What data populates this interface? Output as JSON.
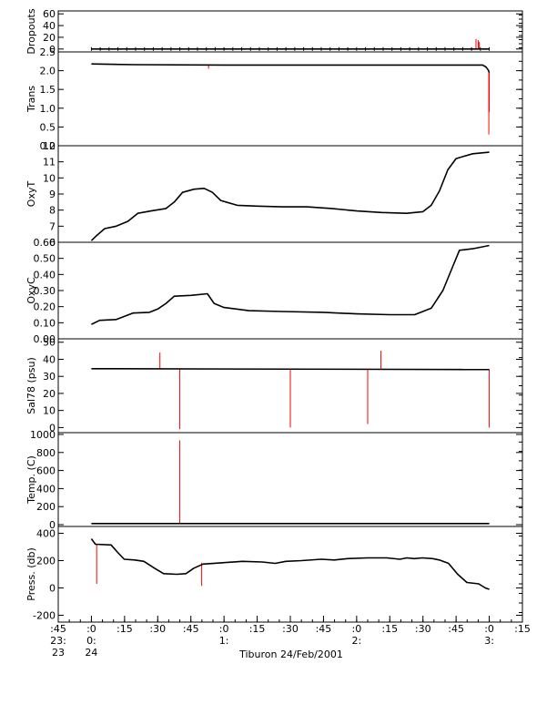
{
  "chart_data": {
    "type": "line",
    "title": "Tiburon 24/Feb/2001",
    "x_axis": {
      "ticks": [
        {
          "t": -15,
          "label": ":45",
          "hour": "23:",
          "day": "23"
        },
        {
          "t": 0,
          "label": ":0",
          "hour": "0:",
          "day": "24"
        },
        {
          "t": 15,
          "label": ":15",
          "hour": "",
          "day": ""
        },
        {
          "t": 30,
          "label": ":30",
          "hour": "",
          "day": ""
        },
        {
          "t": 45,
          "label": ":45",
          "hour": "",
          "day": ""
        },
        {
          "t": 60,
          "label": ":0",
          "hour": "1:",
          "day": ""
        },
        {
          "t": 75,
          "label": ":15",
          "hour": "",
          "day": ""
        },
        {
          "t": 90,
          "label": ":30",
          "hour": "",
          "day": ""
        },
        {
          "t": 105,
          "label": ":45",
          "hour": "",
          "day": ""
        },
        {
          "t": 120,
          "label": ":0",
          "hour": "2:",
          "day": ""
        },
        {
          "t": 135,
          "label": ":15",
          "hour": "",
          "day": ""
        },
        {
          "t": 150,
          "label": ":30",
          "hour": "",
          "day": ""
        },
        {
          "t": 165,
          "label": ":45",
          "hour": "",
          "day": ""
        },
        {
          "t": 180,
          "label": ":0",
          "hour": "3:",
          "day": ""
        },
        {
          "t": 195,
          "label": ":15",
          "hour": "",
          "day": ""
        }
      ]
    },
    "panels": [
      {
        "ylabel": "Dropouts",
        "ylim": [
          -5,
          65
        ],
        "yticks": [
          0,
          20,
          40,
          60
        ],
        "ytick_labels": [
          "0",
          "20",
          "40",
          "60"
        ],
        "series": [
          [
            0,
            0
          ],
          [
            180,
            0
          ]
        ],
        "spikes": [
          [
            174,
            0,
            17
          ],
          [
            175,
            0,
            15
          ],
          [
            175.5,
            0,
            12
          ]
        ]
      },
      {
        "ylabel": "Trans",
        "ylim": [
          0,
          2.5
        ],
        "yticks": [
          0,
          0.5,
          1.0,
          1.5,
          2.0,
          2.5
        ],
        "ytick_labels": [
          "0.0",
          "0.5",
          "1.0",
          "1.5",
          "2.0",
          "2.5"
        ],
        "series": [
          [
            0,
            2.18
          ],
          [
            20,
            2.16
          ],
          [
            60,
            2.15
          ],
          [
            120,
            2.15
          ],
          [
            177,
            2.15
          ],
          [
            178.5,
            2.1
          ],
          [
            179.5,
            2.02
          ],
          [
            180,
            1.95
          ]
        ],
        "spikes": [
          [
            53,
            2.15,
            2.05
          ],
          [
            179.8,
            2.0,
            0.3
          ],
          [
            180,
            1.95,
            0.9
          ]
        ]
      },
      {
        "ylabel": "OxyT",
        "ylim": [
          6,
          12
        ],
        "yticks": [
          6,
          7,
          8,
          9,
          10,
          11,
          12
        ],
        "ytick_labels": [
          "6",
          "7",
          "8",
          "9",
          "10",
          "11",
          "12"
        ],
        "series": [
          [
            0,
            6.1
          ],
          [
            3,
            6.4
          ],
          [
            8,
            6.85
          ],
          [
            15,
            7.0
          ],
          [
            22,
            7.3
          ],
          [
            28,
            7.8
          ],
          [
            36,
            7.95
          ],
          [
            45,
            8.1
          ],
          [
            50,
            8.5
          ],
          [
            55,
            9.1
          ],
          [
            62,
            9.3
          ],
          [
            68,
            9.35
          ],
          [
            73,
            9.1
          ],
          [
            78,
            8.6
          ],
          [
            88,
            8.3
          ],
          [
            100,
            8.25
          ],
          [
            115,
            8.2
          ],
          [
            130,
            8.2
          ],
          [
            145,
            8.1
          ],
          [
            160,
            7.95
          ],
          [
            175,
            7.85
          ],
          [
            190,
            7.8
          ],
          [
            200,
            7.9
          ],
          [
            205,
            8.3
          ],
          [
            210,
            9.2
          ],
          [
            215,
            10.5
          ],
          [
            220,
            11.2
          ],
          [
            230,
            11.5
          ],
          [
            240,
            11.6
          ]
        ],
        "spikes": []
      },
      {
        "ylabel": "OxyC",
        "ylim": [
          0,
          0.6
        ],
        "yticks": [
          0.0,
          0.1,
          0.2,
          0.3,
          0.4,
          0.5,
          0.6
        ],
        "ytick_labels": [
          "0.00",
          "0.10",
          "0.20",
          "0.30",
          "0.40",
          "0.50",
          "0.60"
        ],
        "series": [
          [
            0,
            0.09
          ],
          [
            5,
            0.115
          ],
          [
            15,
            0.12
          ],
          [
            20,
            0.14
          ],
          [
            25,
            0.16
          ],
          [
            35,
            0.165
          ],
          [
            40,
            0.185
          ],
          [
            45,
            0.22
          ],
          [
            50,
            0.265
          ],
          [
            60,
            0.27
          ],
          [
            70,
            0.28
          ],
          [
            74,
            0.22
          ],
          [
            80,
            0.195
          ],
          [
            95,
            0.175
          ],
          [
            115,
            0.17
          ],
          [
            140,
            0.165
          ],
          [
            160,
            0.155
          ],
          [
            180,
            0.15
          ],
          [
            195,
            0.15
          ],
          [
            205,
            0.19
          ],
          [
            212,
            0.3
          ],
          [
            218,
            0.45
          ],
          [
            222,
            0.55
          ],
          [
            230,
            0.56
          ],
          [
            240,
            0.58
          ]
        ],
        "spikes": []
      },
      {
        "ylabel": "Sal78 (psu)",
        "ylim": [
          -3,
          52
        ],
        "yticks": [
          0,
          10,
          20,
          30,
          40,
          50
        ],
        "ytick_labels": [
          "0",
          "10",
          "20",
          "30",
          "40",
          "50"
        ],
        "series": [
          [
            0,
            34.5
          ],
          [
            180,
            34.0
          ]
        ],
        "spikes": [
          [
            31,
            34.5,
            44
          ],
          [
            40,
            34.3,
            -1
          ],
          [
            90,
            34.2,
            0
          ],
          [
            125,
            34.1,
            2
          ],
          [
            131,
            34.1,
            45
          ],
          [
            180,
            34.0,
            0
          ]
        ]
      },
      {
        "ylabel": "Temp. (C)",
        "ylim": [
          -20,
          1020
        ],
        "yticks": [
          0,
          200,
          400,
          600,
          800,
          1000
        ],
        "ytick_labels": [
          "0",
          "200",
          "400",
          "600",
          "800",
          "1000"
        ],
        "series": [
          [
            0,
            12
          ],
          [
            180,
            12
          ]
        ],
        "spikes": [
          [
            40,
            12,
            935
          ]
        ]
      },
      {
        "ylabel": "Press. (db)",
        "ylim": [
          -250,
          450
        ],
        "yticks": [
          -200,
          0,
          200,
          400
        ],
        "ytick_labels": [
          "-200",
          "0",
          "200",
          "400"
        ],
        "series": [
          [
            0,
            360
          ],
          [
            3,
            320
          ],
          [
            15,
            315
          ],
          [
            20,
            260
          ],
          [
            25,
            210
          ],
          [
            33,
            205
          ],
          [
            40,
            195
          ],
          [
            48,
            145
          ],
          [
            55,
            105
          ],
          [
            65,
            100
          ],
          [
            72,
            105
          ],
          [
            78,
            145
          ],
          [
            85,
            175
          ],
          [
            100,
            185
          ],
          [
            115,
            195
          ],
          [
            130,
            190
          ],
          [
            140,
            180
          ],
          [
            148,
            195
          ],
          [
            160,
            200
          ],
          [
            175,
            210
          ],
          [
            185,
            205
          ],
          [
            195,
            215
          ],
          [
            210,
            220
          ],
          [
            225,
            220
          ],
          [
            235,
            210
          ],
          [
            240,
            220
          ],
          [
            246,
            215
          ],
          [
            252,
            220
          ],
          [
            260,
            215
          ],
          [
            265,
            205
          ],
          [
            272,
            180
          ],
          [
            279,
            100
          ],
          [
            286,
            40
          ],
          [
            295,
            30
          ],
          [
            300,
            0
          ],
          [
            303,
            -10
          ]
        ],
        "spikes": [
          [
            4,
            320,
            30
          ],
          [
            84,
            185,
            15
          ]
        ]
      }
    ]
  }
}
